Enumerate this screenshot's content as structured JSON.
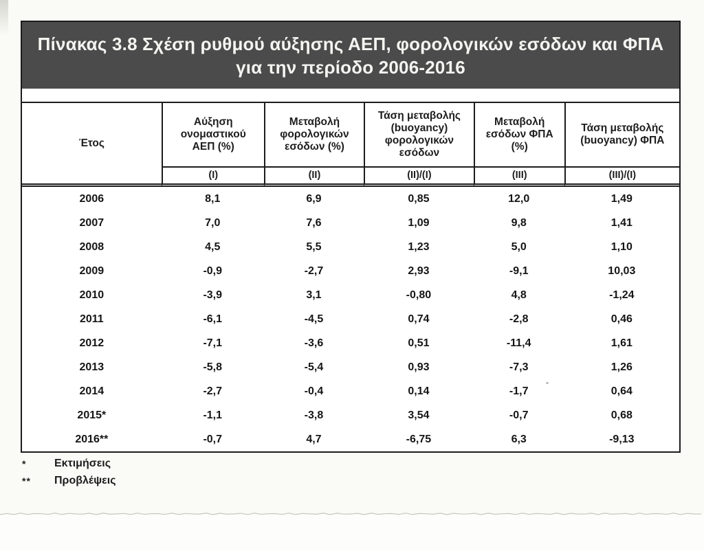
{
  "doc": {
    "title_line1": "Πίνακας 3.8  Σχέση ρυθμού αύξησης ΑΕΠ, φορολογικών εσόδων και ΦΠΑ",
    "title_line2": "για την περίοδο 2006-2016"
  },
  "table": {
    "columns": [
      {
        "label": "Έτος",
        "sub": ""
      },
      {
        "label": "Αύξηση ονομαστικού ΑΕΠ (%)",
        "sub": "(I)"
      },
      {
        "label": "Μεταβολή φορολογικών εσόδων (%)",
        "sub": "(II)"
      },
      {
        "label": "Τάση μεταβολής (buoyancy) φορολογικών εσόδων",
        "sub": "(II)/(I)"
      },
      {
        "label": "Μεταβολή εσόδων ΦΠΑ (%)",
        "sub": "(III)"
      },
      {
        "label": "Τάση μεταβολής (buoyancy) ΦΠΑ",
        "sub": "(III)/(I)"
      }
    ],
    "rows": [
      [
        "2006",
        "8,1",
        "6,9",
        "0,85",
        "12,0",
        "1,49"
      ],
      [
        "2007",
        "7,0",
        "7,6",
        "1,09",
        "9,8",
        "1,41"
      ],
      [
        "2008",
        "4,5",
        "5,5",
        "1,23",
        "5,0",
        "1,10"
      ],
      [
        "2009",
        "-0,9",
        "-2,7",
        "2,93",
        "-9,1",
        "10,03"
      ],
      [
        "2010",
        "-3,9",
        "3,1",
        "-0,80",
        "4,8",
        "-1,24"
      ],
      [
        "2011",
        "-6,1",
        "-4,5",
        "0,74",
        "-2,8",
        "0,46"
      ],
      [
        "2012",
        "-7,1",
        "-3,6",
        "0,51",
        "-11,4",
        "1,61"
      ],
      [
        "2013",
        "-5,8",
        "-5,4",
        "0,93",
        "-7,3",
        "1,26"
      ],
      [
        "2014",
        "-2,7",
        "-0,4",
        "0,14",
        "-1,7",
        "0,64"
      ],
      [
        "2015*",
        "-1,1",
        "-3,8",
        "3,54",
        "-0,7",
        "0,68"
      ],
      [
        "2016**",
        "-0,7",
        "4,7",
        "-6,75",
        "6,3",
        "-9,13"
      ]
    ]
  },
  "footnotes": [
    {
      "marker": "*",
      "text": "Εκτιμήσεις"
    },
    {
      "marker": "**",
      "text": "Προβλέψεις"
    }
  ],
  "colors": {
    "title_bar_bg": "#4b4b4c",
    "title_text": "#f4f4f1",
    "table_border": "#1b1b1b",
    "paper_bg": "#fafaf6"
  }
}
